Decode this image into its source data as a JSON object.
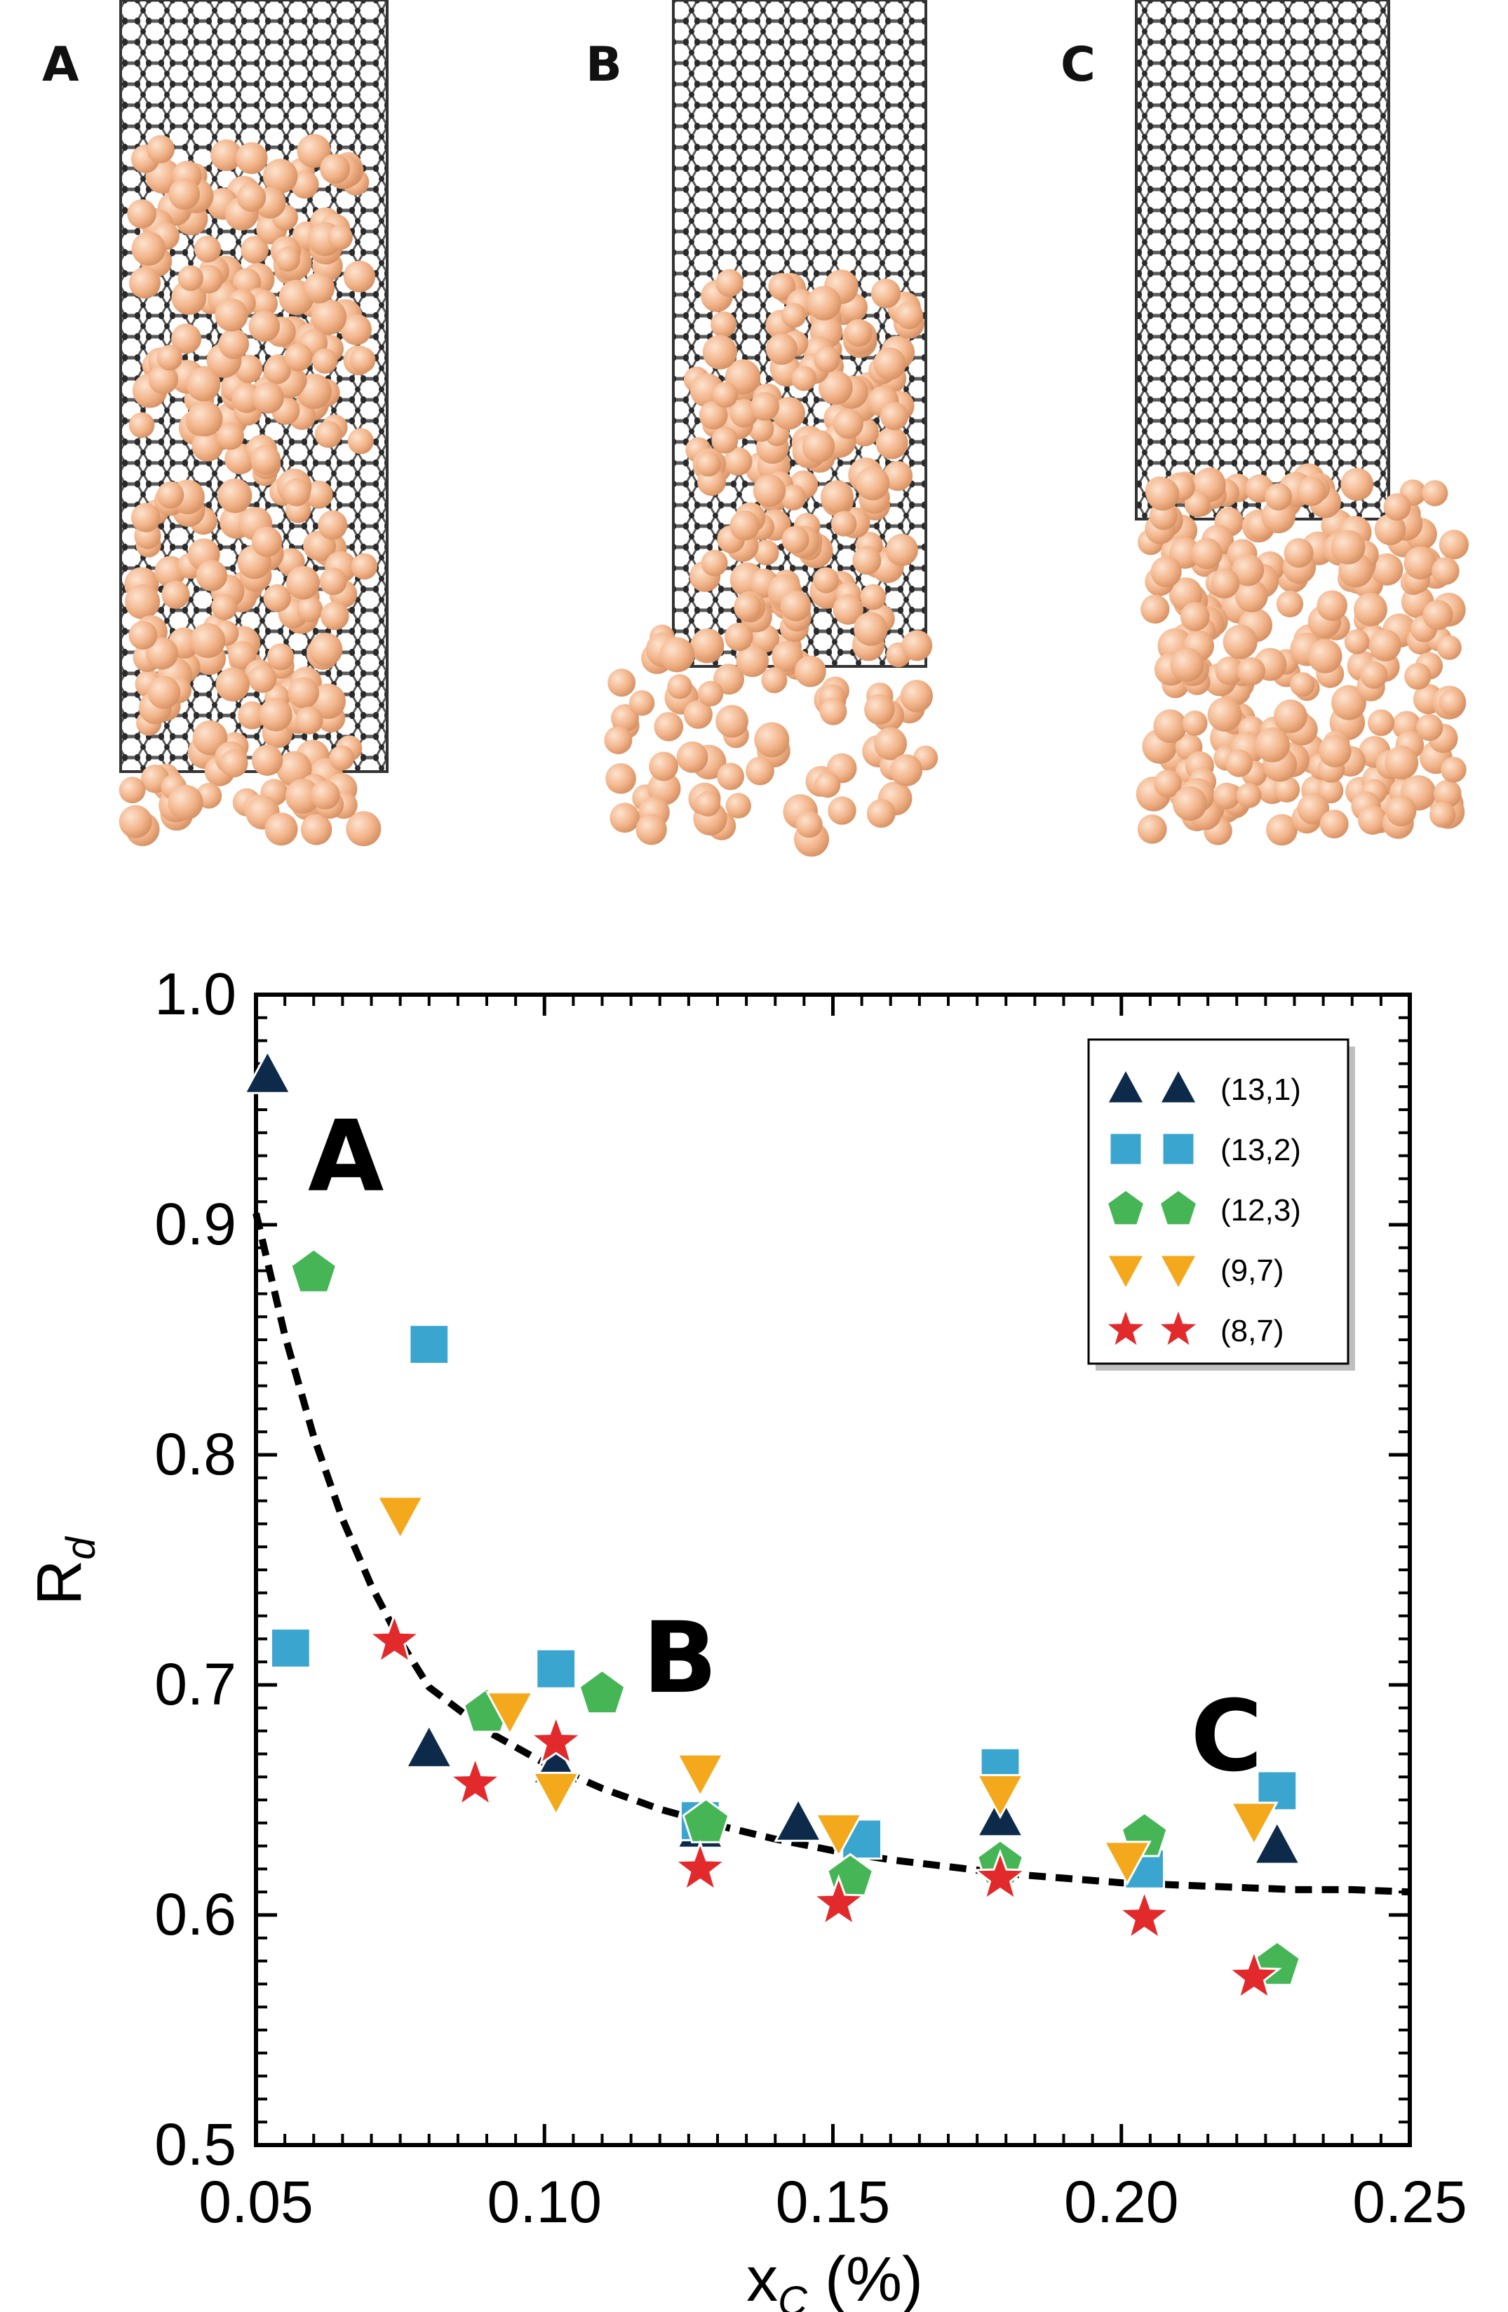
{
  "panels": [
    {
      "label": "A"
    },
    {
      "label": "B"
    },
    {
      "label": "C"
    }
  ],
  "colors": {
    "tube": "#3a3a3a",
    "atom": "#f2b48a",
    "atom_dark": "#dc9a6c"
  },
  "chart_data": {
    "type": "scatter",
    "xlabel_main": "x",
    "xlabel_sub": "C",
    "xlabel_unit": "(%)",
    "ylabel_main": "R",
    "ylabel_sub": "d",
    "xlim": [
      0.05,
      0.25
    ],
    "ylim": [
      0.5,
      1.0
    ],
    "xticks": [
      0.05,
      0.1,
      0.15,
      0.2,
      0.25
    ],
    "xtick_labels": [
      "0.05",
      "0.10",
      "0.15",
      "0.20",
      "0.25"
    ],
    "yticks": [
      0.5,
      0.6,
      0.7,
      0.8,
      0.9,
      1.0
    ],
    "ytick_labels": [
      "0.5",
      "0.6",
      "0.7",
      "0.8",
      "0.9",
      "1.0"
    ],
    "legend_position": "top-right",
    "series": [
      {
        "name": "(13,1)",
        "marker": "triangle-up",
        "color": "#0e2a4a",
        "x": [
          0.052,
          0.08,
          0.102,
          0.127,
          0.144,
          0.179,
          0.227
        ],
        "y": [
          0.965,
          0.672,
          0.665,
          0.637,
          0.64,
          0.642,
          0.63
        ]
      },
      {
        "name": "(13,2)",
        "marker": "square",
        "color": "#3aa6cf",
        "x": [
          0.056,
          0.08,
          0.102,
          0.127,
          0.155,
          0.179,
          0.204,
          0.227
        ],
        "y": [
          0.716,
          0.848,
          0.707,
          0.641,
          0.633,
          0.664,
          0.62,
          0.654
        ]
      },
      {
        "name": "(12,3)",
        "marker": "pentagon",
        "color": "#45b556",
        "x": [
          0.06,
          0.09,
          0.11,
          0.128,
          0.153,
          0.179,
          0.204,
          0.227
        ],
        "y": [
          0.879,
          0.688,
          0.696,
          0.64,
          0.616,
          0.622,
          0.634,
          0.578
        ]
      },
      {
        "name": "(9,7)",
        "marker": "triangle-down",
        "color": "#f4a81c",
        "x": [
          0.075,
          0.094,
          0.102,
          0.127,
          0.151,
          0.179,
          0.201,
          0.223
        ],
        "y": [
          0.774,
          0.689,
          0.654,
          0.662,
          0.636,
          0.653,
          0.624,
          0.641
        ]
      },
      {
        "name": "(8,7)",
        "marker": "star",
        "color": "#e2292b",
        "x": [
          0.074,
          0.088,
          0.102,
          0.127,
          0.151,
          0.179,
          0.204,
          0.223
        ],
        "y": [
          0.719,
          0.657,
          0.675,
          0.62,
          0.605,
          0.616,
          0.599,
          0.573
        ]
      }
    ],
    "fit_curve": {
      "style": "dashed",
      "color": "#000000",
      "points": [
        [
          0.05,
          0.905
        ],
        [
          0.055,
          0.852
        ],
        [
          0.06,
          0.808
        ],
        [
          0.065,
          0.772
        ],
        [
          0.07,
          0.743
        ],
        [
          0.075,
          0.719
        ],
        [
          0.08,
          0.699
        ],
        [
          0.09,
          0.68
        ],
        [
          0.1,
          0.666
        ],
        [
          0.11,
          0.655
        ],
        [
          0.12,
          0.646
        ],
        [
          0.13,
          0.639
        ],
        [
          0.14,
          0.633
        ],
        [
          0.15,
          0.628
        ],
        [
          0.16,
          0.624
        ],
        [
          0.17,
          0.621
        ],
        [
          0.18,
          0.618
        ],
        [
          0.19,
          0.616
        ],
        [
          0.2,
          0.614
        ],
        [
          0.21,
          0.613
        ],
        [
          0.22,
          0.612
        ],
        [
          0.23,
          0.611
        ],
        [
          0.24,
          0.611
        ],
        [
          0.25,
          0.61
        ]
      ]
    },
    "annotations": [
      {
        "text": "A",
        "x": 0.059,
        "y": 0.915
      },
      {
        "text": "B",
        "x": 0.117,
        "y": 0.697
      },
      {
        "text": "C",
        "x": 0.212,
        "y": 0.663
      }
    ]
  }
}
